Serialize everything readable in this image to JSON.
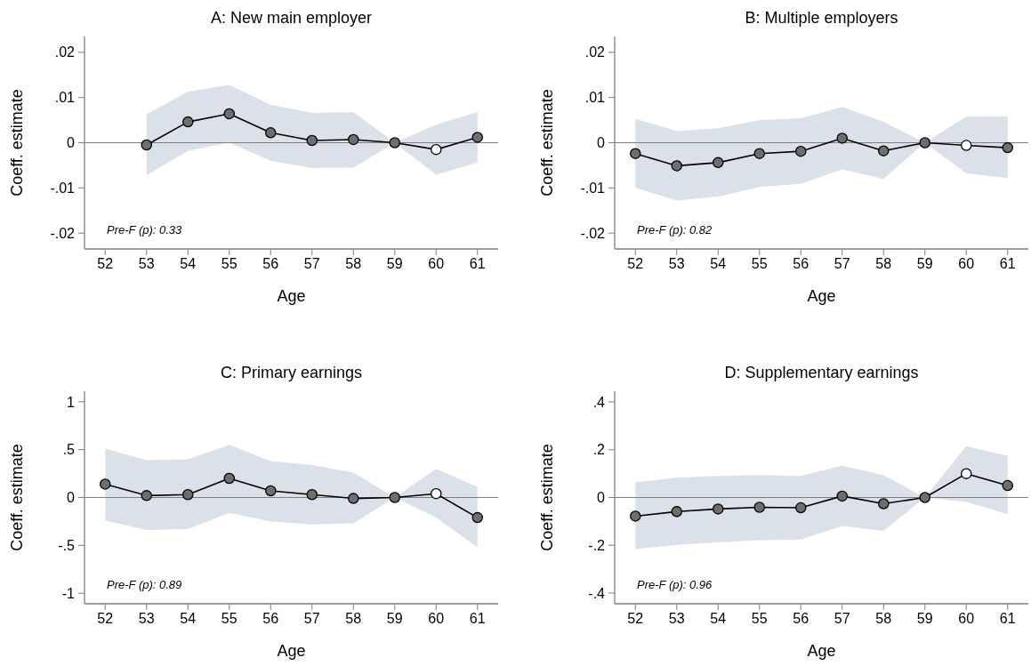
{
  "chart_data": [
    {
      "type": "line",
      "title": "A: New main employer",
      "xlabel": "Age",
      "ylabel": "Coeff. estimate",
      "xlim": [
        51.5,
        61.5
      ],
      "xticks": [
        52,
        53,
        54,
        55,
        56,
        57,
        58,
        59,
        60,
        61
      ],
      "ylim": [
        -0.0235,
        0.0235
      ],
      "yticks": [
        {
          "value": -0.02,
          "label": "-.02"
        },
        {
          "value": -0.01,
          "label": "-.01"
        },
        0,
        {
          "value": 0.01,
          "label": ".01"
        },
        {
          "value": 0.02,
          "label": ".02"
        }
      ],
      "marker": "circle",
      "ref_lines": [
        {
          "axis": "y",
          "value": 0,
          "color": "#808080"
        }
      ],
      "annotations": [
        "Pre-F (p): 0.33"
      ],
      "series": [
        {
          "x": [
            53,
            54,
            55,
            56,
            57,
            58,
            59,
            60,
            61
          ],
          "color": "#000000",
          "colors": [
            "#6e6e6e",
            "#6e6e6e",
            "#6e6e6e",
            "#6e6e6e",
            "#6e6e6e",
            "#6e6e6e",
            "#6e6e6e",
            "#ffffff",
            "#6e6e6e"
          ],
          "values": [
            -0.0005,
            0.0046,
            0.0064,
            0.0022,
            0.0005,
            0.0007,
            0,
            -0.0015,
            0.0012
          ],
          "lower": [
            -0.0072,
            -0.0018,
            0,
            -0.004,
            -0.0056,
            -0.0055,
            0,
            -0.0071,
            -0.0044
          ],
          "upper": [
            0.0063,
            0.0113,
            0.0128,
            0.0084,
            0.0066,
            0.0068,
            0,
            0.004,
            0.0068
          ]
        }
      ]
    },
    {
      "type": "line",
      "title": "B: Multiple employers",
      "xlabel": "Age",
      "ylabel": "Coeff. estimate",
      "x": [
        52,
        53,
        54,
        55,
        56,
        57,
        58,
        59,
        60,
        61
      ],
      "xlim": [
        51.5,
        61.5
      ],
      "xticks": [
        52,
        53,
        54,
        55,
        56,
        57,
        58,
        59,
        60,
        61
      ],
      "ylim": [
        -0.0235,
        0.0235
      ],
      "yticks": [
        {
          "value": -0.02,
          "label": "-.02"
        },
        {
          "value": -0.01,
          "label": "-.01"
        },
        0,
        {
          "value": 0.01,
          "label": ".01"
        },
        {
          "value": 0.02,
          "label": ".02"
        }
      ],
      "marker": "circle",
      "ref_lines": [
        {
          "axis": "y",
          "value": 0,
          "color": "#808080"
        }
      ],
      "annotations": [
        "Pre-F (p): 0.82"
      ],
      "series": [
        {
          "color": "#000000",
          "colors": [
            "#6e6e6e",
            "#6e6e6e",
            "#6e6e6e",
            "#6e6e6e",
            "#6e6e6e",
            "#6e6e6e",
            "#6e6e6e",
            "#6e6e6e",
            "#ffffff",
            "#6e6e6e"
          ],
          "values": [
            -0.0024,
            -0.0051,
            -0.0044,
            -0.0024,
            -0.0019,
            0.001,
            -0.0018,
            0,
            -0.0006,
            -0.0011
          ],
          "lower": [
            -0.01,
            -0.0128,
            -0.0119,
            -0.0098,
            -0.0091,
            -0.0059,
            -0.008,
            0,
            -0.0068,
            -0.0078
          ],
          "upper": [
            0.0053,
            0.0026,
            0.0032,
            0.005,
            0.0054,
            0.0079,
            0.0046,
            0,
            0.0058,
            0.0058
          ]
        }
      ]
    },
    {
      "type": "line",
      "title": "C: Primary earnings",
      "xlabel": "Age",
      "ylabel": "Coeff. estimate",
      "x": [
        52,
        53,
        54,
        55,
        56,
        57,
        58,
        59,
        60,
        61
      ],
      "xlim": [
        51.5,
        61.5
      ],
      "xticks": [
        52,
        53,
        54,
        55,
        56,
        57,
        58,
        59,
        60,
        61
      ],
      "ylim": [
        -1.11,
        1.11
      ],
      "yticks": [
        -1,
        {
          "value": -0.5,
          "label": "-.5"
        },
        0,
        {
          "value": 0.5,
          "label": ".5"
        },
        1
      ],
      "marker": "circle",
      "ref_lines": [
        {
          "axis": "y",
          "value": 0,
          "color": "#808080"
        }
      ],
      "annotations": [
        "Pre-F (p): 0.89"
      ],
      "series": [
        {
          "color": "#000000",
          "colors": [
            "#6e6e6e",
            "#6e6e6e",
            "#6e6e6e",
            "#6e6e6e",
            "#6e6e6e",
            "#6e6e6e",
            "#6e6e6e",
            "#6e6e6e",
            "#ffffff",
            "#6e6e6e"
          ],
          "values": [
            0.14,
            0.02,
            0.03,
            0.2,
            0.07,
            0.03,
            -0.01,
            0,
            0.04,
            -0.21
          ],
          "lower": [
            -0.24,
            -0.34,
            -0.33,
            -0.16,
            -0.25,
            -0.28,
            -0.27,
            0,
            -0.21,
            -0.52
          ],
          "upper": [
            0.51,
            0.39,
            0.4,
            0.55,
            0.38,
            0.34,
            0.26,
            0,
            0.3,
            0.11
          ]
        }
      ]
    },
    {
      "type": "line",
      "title": "D: Supplementary earnings",
      "xlabel": "Age",
      "ylabel": "Coeff. estimate",
      "x": [
        52,
        53,
        54,
        55,
        56,
        57,
        58,
        59,
        60,
        61
      ],
      "xlim": [
        51.5,
        61.5
      ],
      "xticks": [
        52,
        53,
        54,
        55,
        56,
        57,
        58,
        59,
        60,
        61
      ],
      "ylim": [
        -0.445,
        0.445
      ],
      "yticks": [
        {
          "value": -0.4,
          "label": "-.4"
        },
        {
          "value": -0.2,
          "label": "-.2"
        },
        0,
        {
          "value": 0.2,
          "label": ".2"
        },
        {
          "value": 0.4,
          "label": ".4"
        }
      ],
      "marker": "circle",
      "ref_lines": [
        {
          "axis": "y",
          "value": 0,
          "color": "#808080"
        }
      ],
      "annotations": [
        "Pre-F (p): 0.96"
      ],
      "series": [
        {
          "color": "#000000",
          "colors": [
            "#6e6e6e",
            "#6e6e6e",
            "#6e6e6e",
            "#6e6e6e",
            "#6e6e6e",
            "#6e6e6e",
            "#6e6e6e",
            "#6e6e6e",
            "#ffffff",
            "#6e6e6e"
          ],
          "values": [
            -0.078,
            -0.059,
            -0.048,
            -0.041,
            -0.043,
            0.006,
            -0.026,
            0,
            0.1,
            0.05
          ],
          "lower": [
            -0.216,
            -0.198,
            -0.188,
            -0.179,
            -0.176,
            -0.119,
            -0.14,
            0,
            -0.019,
            -0.07
          ],
          "upper": [
            0.063,
            0.083,
            0.09,
            0.094,
            0.09,
            0.133,
            0.093,
            0,
            0.215,
            0.174
          ]
        }
      ]
    }
  ]
}
